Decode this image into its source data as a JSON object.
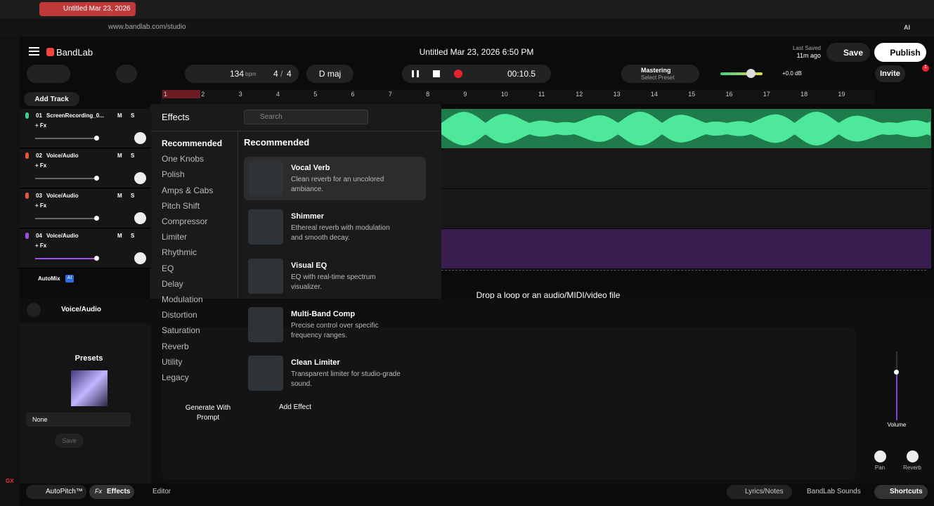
{
  "browser": {
    "tab_title": "Untitled Mar 23, 2026",
    "url": "www.bandlab.com/studio",
    "ai": "AI",
    "sidebar_gx": "GX"
  },
  "header": {
    "brand": "BandLab",
    "song_title": "Untitled Mar 23, 2026 6:50 PM",
    "last_saved": "Last Saved",
    "saved_ago": "11m ago",
    "save": "Save",
    "publish": "Publish",
    "invite": "Invite",
    "notifications": "1"
  },
  "transport": {
    "tempo": "134",
    "tempo_unit": "bpm",
    "time_sig_num": "4",
    "time_sig_sep": "/",
    "time_sig_den": "4",
    "key": "D maj",
    "time": "00:10.5",
    "mastering": "Mastering",
    "preset": "Select Preset",
    "volume_db": "+0.0 dB"
  },
  "ruler": [
    "1",
    "2",
    "3",
    "4",
    "5",
    "6",
    "7",
    "8",
    "9",
    "10",
    "11",
    "12",
    "13",
    "14",
    "15",
    "16",
    "17",
    "18",
    "19"
  ],
  "track_panel": {
    "add_track": "Add Track",
    "automix": "AutoMix",
    "automix_badge": "AI"
  },
  "tracks": [
    {
      "number": "01",
      "name": "ScreenRecording_0...",
      "fx": "+ Fx",
      "mute": "M",
      "solo": "S"
    },
    {
      "number": "02",
      "name": "Voice/Audio",
      "fx": "+ Fx",
      "mute": "M",
      "solo": "S"
    },
    {
      "number": "03",
      "name": "Voice/Audio",
      "fx": "+ Fx",
      "mute": "M",
      "solo": "S"
    },
    {
      "number": "04",
      "name": "Voice/Audio",
      "fx": "+ Fx",
      "mute": "M",
      "solo": "S"
    }
  ],
  "drop_zone": "Drop a loop or an audio/MIDI/video file",
  "effects": {
    "title": "Effects",
    "search": "Search",
    "section": "Recommended",
    "categories": [
      "Recommended",
      "One Knobs",
      "Polish",
      "Amps & Cabs",
      "Pitch Shift",
      "Compressor",
      "Limiter",
      "Rhythmic",
      "EQ",
      "Delay",
      "Modulation",
      "Distortion",
      "Saturation",
      "Reverb",
      "Utility",
      "Legacy"
    ],
    "items": [
      {
        "name": "Vocal Verb",
        "description": "Clean reverb for an uncolored ambiance."
      },
      {
        "name": "Shimmer",
        "description": "Ethereal reverb with modulation and smooth decay."
      },
      {
        "name": "Visual EQ",
        "description": "EQ with real-time spectrum visualizer."
      },
      {
        "name": "Multi-Band Comp",
        "description": "Precise control over specific frequency ranges."
      },
      {
        "name": "Clean Limiter",
        "description": "Transparent limiter for studio-grade sound."
      }
    ]
  },
  "bottom_panel": {
    "track_label": "Voice/Audio",
    "presets": "Presets",
    "preset_select": "None",
    "save": "Save",
    "generate": "Generate With Prompt",
    "add_effect": "Add Effect",
    "volume": "Volume",
    "pan": "Pan",
    "reverb": "Reverb"
  },
  "footer": {
    "autopitch": "AutoPitch™",
    "fx_icon": "Fx",
    "effects": "Effects",
    "editor": "Editor",
    "lyrics": "Lyrics/Notes",
    "sounds": "BandLab Sounds",
    "shortcuts": "Shortcuts"
  }
}
